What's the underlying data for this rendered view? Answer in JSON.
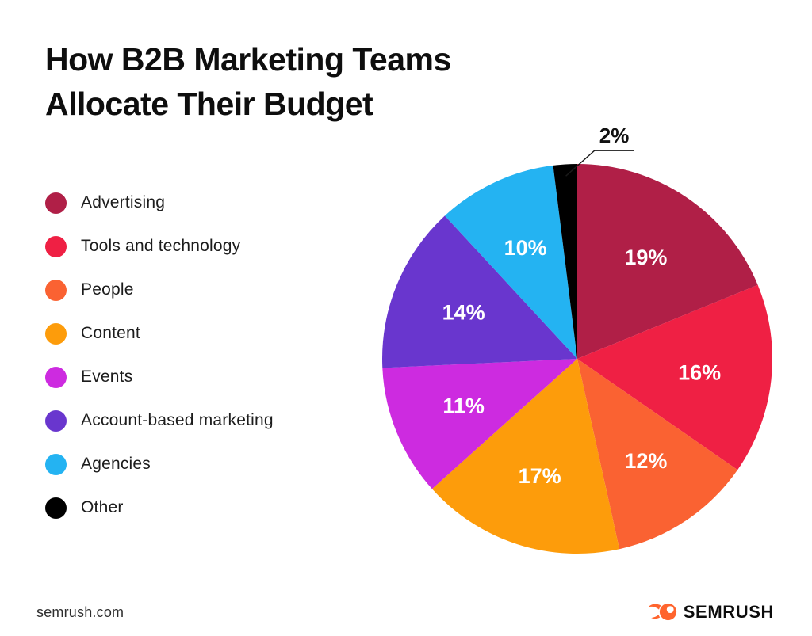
{
  "title": "How B2B Marketing Teams Allocate Their Budget",
  "chart_data": {
    "type": "pie",
    "title": "How B2B Marketing Teams Allocate Their Budget",
    "unit": "%",
    "start_angle_deg": 0,
    "direction": "clockwise",
    "legend_position": "left",
    "label_color_inside": "#ffffff",
    "label_color_outside": "#111111",
    "series": [
      {
        "name": "Advertising",
        "value": 19,
        "label": "19%",
        "color": "#B01F47"
      },
      {
        "name": "Tools and technology",
        "value": 16,
        "label": "16%",
        "color": "#EF2044"
      },
      {
        "name": "People",
        "value": 12,
        "label": "12%",
        "color": "#FA6232"
      },
      {
        "name": "Content",
        "value": 17,
        "label": "17%",
        "color": "#FD9C0B"
      },
      {
        "name": "Events",
        "value": 11,
        "label": "11%",
        "color": "#CD2BE0"
      },
      {
        "name": "Account-based marketing",
        "value": 14,
        "label": "14%",
        "color": "#6936CE"
      },
      {
        "name": "Agencies",
        "value": 10,
        "label": "10%",
        "color": "#24B3F2"
      },
      {
        "name": "Other",
        "value": 2,
        "label": "2%",
        "color": "#000000",
        "label_outside": true
      }
    ]
  },
  "footer": {
    "site": "semrush.com",
    "brand": "SEMRUSH",
    "brand_color": "#FF642D",
    "logo_icon": "semrush-flame-icon"
  }
}
